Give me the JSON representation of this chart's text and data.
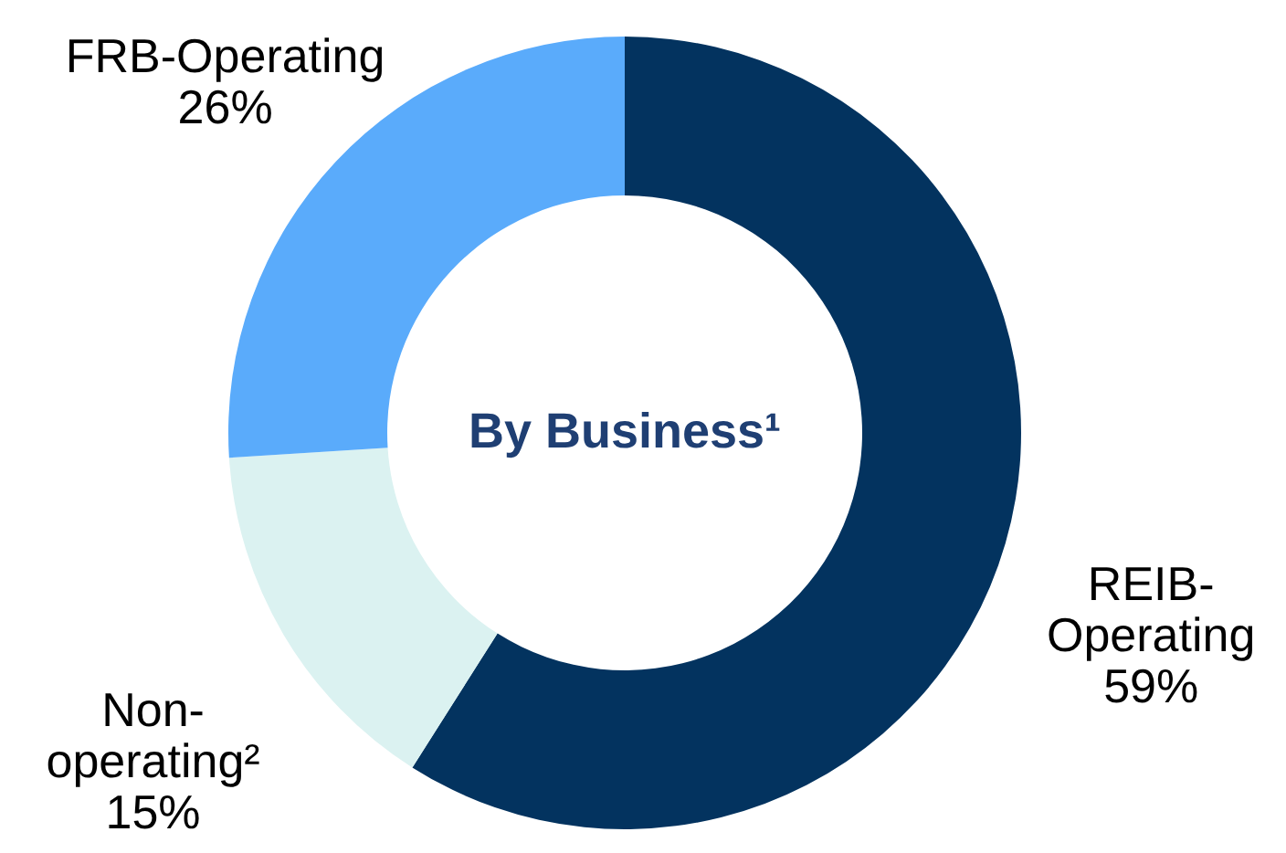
{
  "chart_data": {
    "type": "donut",
    "title": "By Business¹",
    "categories": [
      "REIB-\nOperating",
      "Non-\noperating²",
      "FRB-Operating"
    ],
    "values": [
      59,
      15,
      26
    ],
    "colors": [
      "#03335f",
      "#dbf2f1",
      "#5aabfb"
    ],
    "value_labels": [
      "59%",
      "15%",
      "26%"
    ]
  }
}
